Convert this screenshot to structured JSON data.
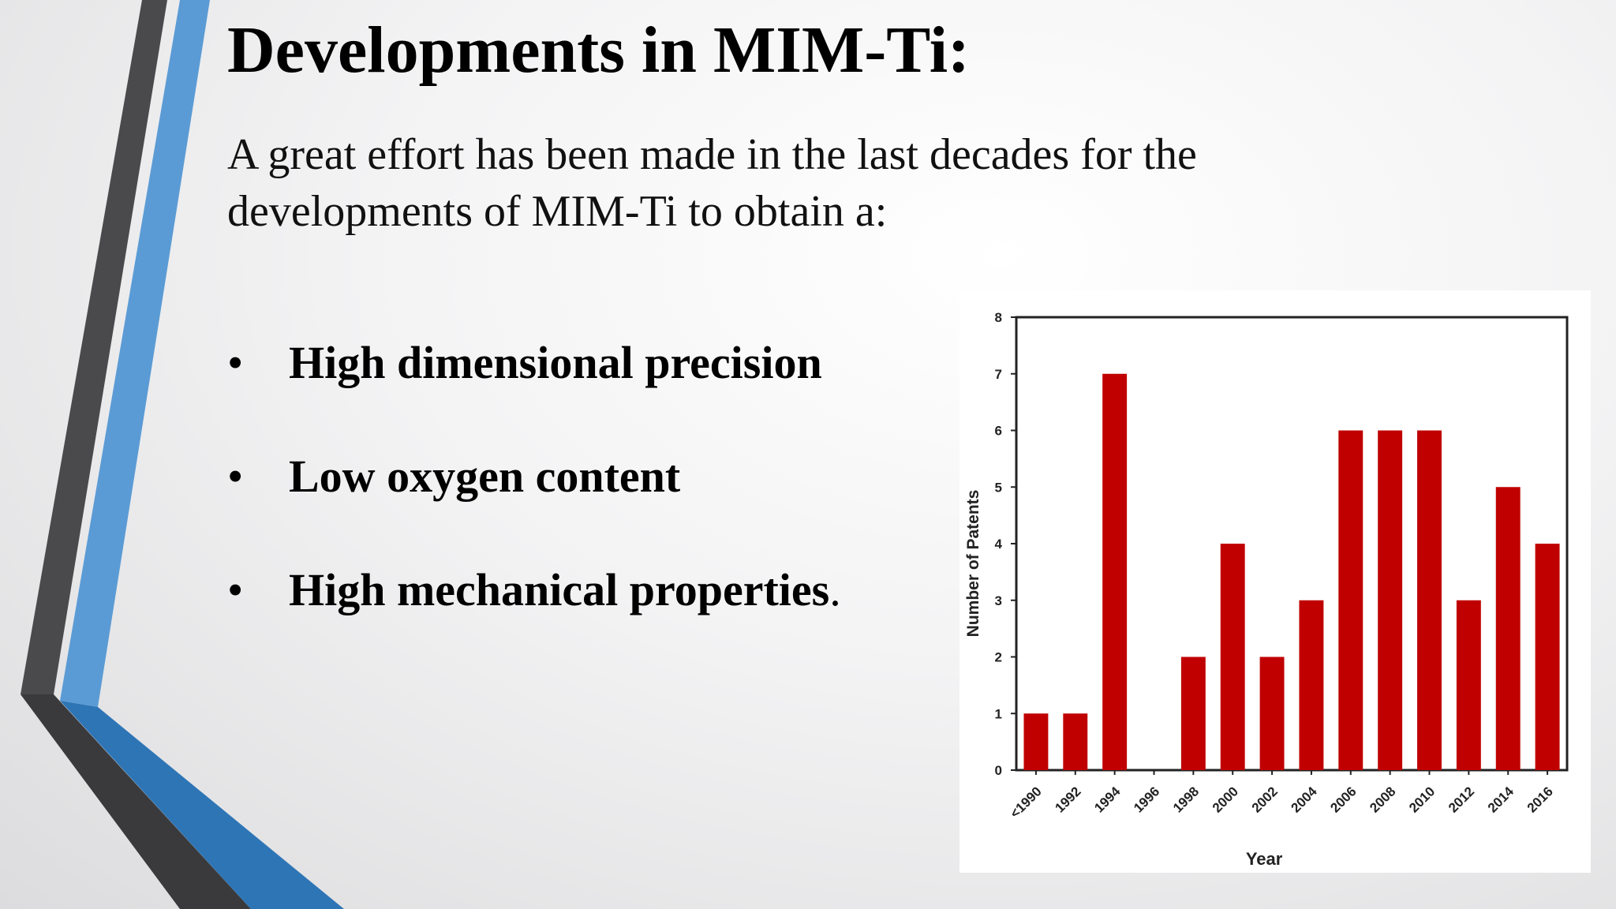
{
  "slide": {
    "title": "Developments in MIM-Ti:",
    "intro": "A great effort has been made in the last decades for the developments of MIM-Ti to obtain a:",
    "bullet_symbol": "•",
    "bullets": [
      {
        "text": "High dimensional precision",
        "tail": ""
      },
      {
        "text": "Low oxygen content",
        "tail": ""
      },
      {
        "text": "High mechanical properties",
        "tail": "."
      }
    ]
  },
  "theme": {
    "dark_stripe": "#4a4a4c",
    "light_blue_stripe": "#5b9bd5",
    "blue_stripe": "#2e75b6",
    "bar_color": "#c00000"
  },
  "chart_data": {
    "type": "bar",
    "categories": [
      "<1990",
      "1992",
      "1994",
      "1996",
      "1998",
      "2000",
      "2002",
      "2004",
      "2006",
      "2008",
      "2010",
      "2012",
      "2014",
      "2016"
    ],
    "values": [
      1,
      1,
      7,
      0,
      2,
      4,
      2,
      3,
      6,
      6,
      6,
      3,
      5,
      4
    ],
    "xlabel": "Year",
    "ylabel": "Number of Patents",
    "ylim": [
      0,
      8
    ],
    "yticks": [
      0,
      1,
      2,
      3,
      4,
      5,
      6,
      7,
      8
    ],
    "grid": false,
    "legend": "none"
  }
}
